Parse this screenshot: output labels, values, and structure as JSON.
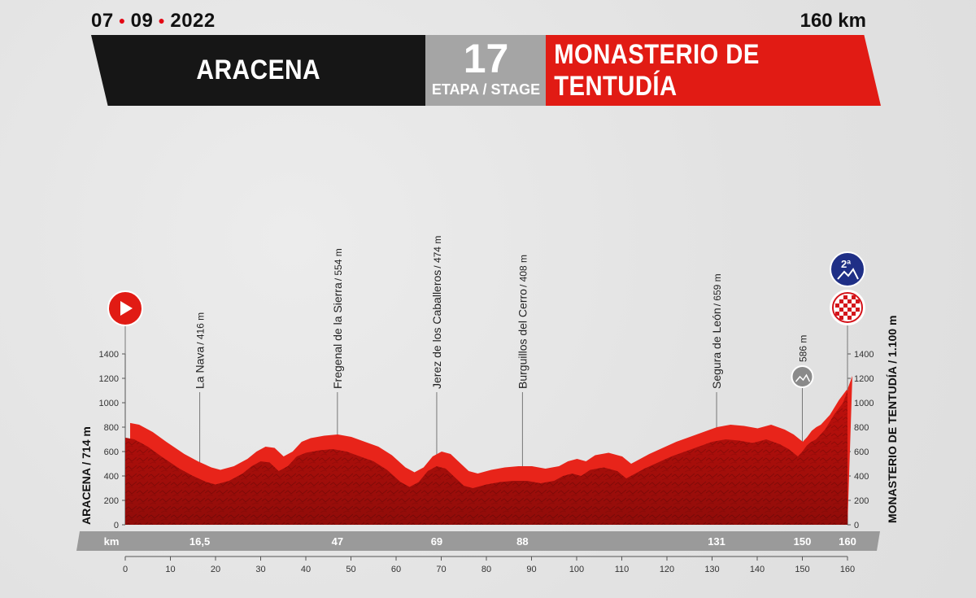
{
  "header": {
    "date_day": "07",
    "date_month": "09",
    "date_year": "2022",
    "distance": "160 km",
    "start_town": "ARACENA",
    "stage_number": "17",
    "stage_label": "ETAPA / STAGE",
    "finish_town": "MONASTERIO DE TENTUDÍA"
  },
  "colors": {
    "start_banner": "#161616",
    "stage_banner": "#a5a5a5",
    "finish_banner": "#e11b14",
    "profile_fill": "#c0100c",
    "km_bar": "#9a9a9a",
    "start_icon": "#e11b14",
    "kom_icon": "#1f2f86"
  },
  "icons": {
    "start": "start-play-icon",
    "kom": "category-2-climb-icon",
    "finish": "checkered-finish-icon",
    "sprint": "intermediate-climb-icon"
  },
  "chart_data": {
    "type": "area",
    "xlabel": "km",
    "xlim": [
      0,
      160
    ],
    "ylim": [
      0,
      1400
    ],
    "x_ticks": [
      0,
      10,
      20,
      30,
      40,
      50,
      60,
      70,
      80,
      90,
      100,
      110,
      120,
      130,
      140,
      150,
      160
    ],
    "y_ticks": [
      0,
      200,
      400,
      600,
      800,
      1000,
      1200,
      1400
    ],
    "y_label_left": "ARACENA / 714 m",
    "y_label_right": "MONASTERIO DE TENTUDÍA / 1.100 m",
    "km_markers": [
      "16,5",
      "47",
      "69",
      "88",
      "131",
      "150",
      "160"
    ],
    "km_marker_values": [
      16.5,
      47,
      69,
      88,
      131,
      150,
      160
    ],
    "waypoints": [
      {
        "km": 16.5,
        "label": "La Nava",
        "altitude": "/ 416 m"
      },
      {
        "km": 47,
        "label": "Fregenal de la Sierra",
        "altitude": "/ 554 m"
      },
      {
        "km": 69,
        "label": "Jerez de los Caballeros",
        "altitude": "/ 474 m"
      },
      {
        "km": 88,
        "label": "Burguillos del Cerro",
        "altitude": "/ 408 m"
      },
      {
        "km": 131,
        "label": "Segura de León",
        "altitude": "/ 659 m"
      },
      {
        "km": 150,
        "label": "",
        "altitude": "586 m"
      }
    ],
    "profile": {
      "x": [
        0,
        2,
        5,
        8,
        12,
        15,
        18,
        20,
        23,
        26,
        28,
        30,
        32,
        34,
        36,
        38,
        40,
        43,
        46,
        49,
        52,
        55,
        58,
        61,
        63,
        65,
        67,
        69,
        71,
        73,
        75,
        77,
        80,
        83,
        86,
        89,
        92,
        95,
        97,
        99,
        101,
        103,
        106,
        109,
        111,
        113,
        115,
        118,
        121,
        124,
        127,
        130,
        133,
        136,
        139,
        142,
        145,
        147,
        149,
        150,
        151,
        152,
        153,
        155,
        157,
        159,
        160
      ],
      "y": [
        714,
        700,
        640,
        560,
        460,
        400,
        350,
        330,
        360,
        420,
        480,
        520,
        510,
        440,
        480,
        560,
        590,
        610,
        620,
        600,
        560,
        520,
        450,
        350,
        310,
        350,
        440,
        480,
        460,
        390,
        320,
        300,
        330,
        350,
        360,
        360,
        340,
        360,
        400,
        420,
        400,
        450,
        470,
        440,
        380,
        420,
        460,
        510,
        560,
        600,
        640,
        680,
        700,
        690,
        670,
        700,
        660,
        620,
        560,
        600,
        650,
        680,
        700,
        780,
        900,
        1000,
        1100
      ]
    }
  }
}
